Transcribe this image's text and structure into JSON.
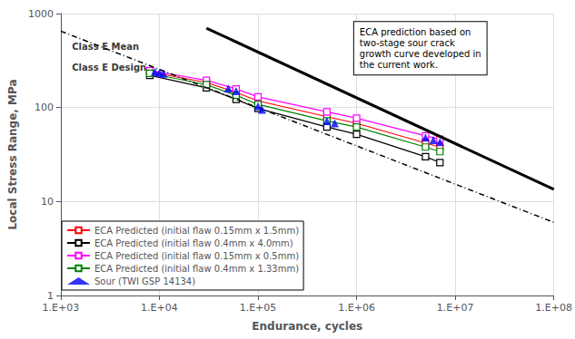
{
  "chart_data": {
    "type": "line",
    "log": true,
    "grid": true,
    "legend": "lower left",
    "xlabel": "Endurance, cycles",
    "ylabel": "Local Stress Range, MPa",
    "xlim": [
      1000,
      100000000
    ],
    "ylim": [
      1,
      1000
    ],
    "xticks": [
      {
        "value": 1000,
        "label": "1.E+03"
      },
      {
        "value": 10000,
        "label": "1.E+04"
      },
      {
        "value": 100000,
        "label": "1.E+05"
      },
      {
        "value": 1000000,
        "label": "1.E+06"
      },
      {
        "value": 10000000,
        "label": "1.E+07"
      },
      {
        "value": 100000000,
        "label": "1.E+08"
      }
    ],
    "yticks": [
      1,
      10,
      100,
      1000
    ],
    "annotations": [
      {
        "text": "Class E Mean",
        "x": 1300,
        "y": 520
      },
      {
        "text": "Class E Design",
        "x": 1300,
        "y": 310
      },
      {
        "text": "ECA prediction based on\ntwo-stage sour crack\ngrowth curve developed in\nthe current work."
      }
    ],
    "series": [
      {
        "color": "#000000",
        "line_style": "solid",
        "marker": "none",
        "x": [
          30000,
          100000000
        ],
        "values": [
          700,
          13.5
        ]
      },
      {
        "color": "#000000",
        "line_style": "dashdot",
        "marker": "none",
        "x": [
          1000,
          100000000
        ],
        "values": [
          650,
          6.0
        ]
      },
      {
        "name": "ECA Predicted (initial flaw 0.15mm x 1.5mm)",
        "color": "#ff0000",
        "line_style": "solid",
        "marker": "square",
        "x": [
          8000,
          30000,
          60000,
          100000,
          500000,
          1000000,
          5000000,
          7000000
        ],
        "values": [
          240,
          185,
          145,
          118,
          80,
          68,
          42,
          38
        ]
      },
      {
        "name": "ECA Predicted (initial flaw 0.4mm x 4.0mm)",
        "color": "#000000",
        "line_style": "solid",
        "marker": "square",
        "x": [
          8000,
          30000,
          60000,
          100000,
          500000,
          1000000,
          5000000,
          7000000
        ],
        "values": [
          220,
          162,
          122,
          98,
          62,
          52,
          30,
          26
        ]
      },
      {
        "name": "ECA Predicted (initial flaw 0.15mm x 0.5mm)",
        "color": "#ff00ff",
        "line_style": "solid",
        "marker": "square",
        "x": [
          8000,
          30000,
          60000,
          100000,
          500000,
          1000000,
          5000000,
          7000000
        ],
        "values": [
          248,
          195,
          158,
          130,
          90,
          77,
          50,
          46
        ]
      },
      {
        "name": "ECA Predicted (initial flaw 0.4mm x 1.33mm)",
        "color": "#008000",
        "line_style": "solid",
        "marker": "square",
        "x": [
          8000,
          30000,
          60000,
          100000,
          500000,
          1000000,
          5000000,
          7000000
        ],
        "values": [
          232,
          175,
          135,
          108,
          72,
          62,
          38,
          34
        ]
      },
      {
        "name": "Sour (TWI GSP 14134)",
        "type": "scatter",
        "color": "#0000ff",
        "marker": "triangle",
        "x": [
          9000,
          10000,
          11000,
          50000,
          60000,
          100000,
          110000,
          500000,
          600000,
          5000000,
          6000000,
          7000000
        ],
        "values": [
          240,
          235,
          230,
          160,
          150,
          103,
          95,
          72,
          68,
          48,
          45,
          43
        ]
      }
    ]
  }
}
